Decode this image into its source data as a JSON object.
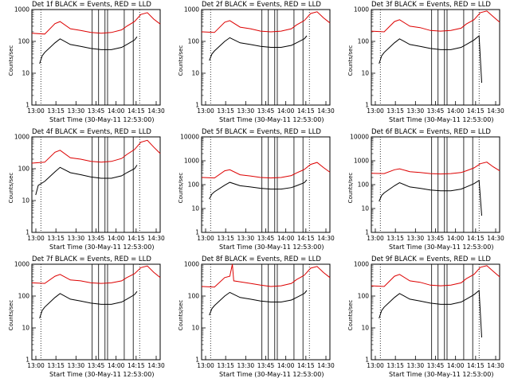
{
  "figure": {
    "background": "#ffffff",
    "colors": {
      "events": "#000000",
      "lld": "#dd0000",
      "marker": "#000000"
    }
  },
  "chart_data": [
    {
      "type": "line",
      "title": "Det 1f BLACK = Events, RED = LLD",
      "xlabel": "Start Time (30-May-11 12:53:00)",
      "ylabel": "Counts/sec",
      "yscale": "log",
      "ylim": [
        1,
        1000
      ],
      "xlim": [
        0,
        100
      ],
      "x_ticks": [
        "13:00",
        "13:15",
        "13:30",
        "13:45",
        "14:00",
        "14:15",
        "14:30"
      ],
      "y_ticks": [
        "1",
        "10",
        "100",
        "1000"
      ],
      "series": [
        {
          "name": "LLD",
          "color": "#dd0000",
          "x": [
            0,
            10,
            18,
            22,
            30,
            38,
            46,
            54,
            62,
            70,
            74,
            80,
            85,
            90,
            95,
            100
          ],
          "values": [
            180,
            170,
            360,
            420,
            250,
            220,
            190,
            180,
            190,
            230,
            300,
            420,
            700,
            800,
            500,
            350
          ]
        },
        {
          "name": "Events",
          "color": "#000000",
          "x": [
            6,
            8,
            10,
            18,
            22,
            30,
            38,
            46,
            54,
            62,
            70,
            74,
            80,
            82
          ],
          "values": [
            20,
            35,
            45,
            90,
            120,
            80,
            70,
            60,
            55,
            55,
            65,
            80,
            110,
            140
          ]
        }
      ],
      "vlines_dotted": [
        7,
        84
      ],
      "vlines_solid": [
        47,
        52,
        57,
        59,
        72,
        79
      ]
    },
    {
      "type": "line",
      "title": "Det 2f BLACK = Events, RED = LLD",
      "xlabel": "Start Time (30-May-11 12:53:00)",
      "ylabel": "Counts/sec",
      "yscale": "log",
      "ylim": [
        1,
        1000
      ],
      "xlim": [
        0,
        100
      ],
      "x_ticks": [
        "13:00",
        "13:15",
        "13:30",
        "13:45",
        "14:00",
        "14:15",
        "14:30"
      ],
      "y_ticks": [
        "1",
        "10",
        "100",
        "1000"
      ],
      "series": [
        {
          "name": "LLD",
          "color": "#dd0000",
          "x": [
            0,
            10,
            18,
            22,
            30,
            38,
            46,
            54,
            62,
            70,
            74,
            80,
            85,
            90,
            95,
            100
          ],
          "values": [
            200,
            190,
            400,
            450,
            280,
            250,
            210,
            200,
            210,
            250,
            330,
            450,
            750,
            850,
            550,
            380
          ]
        },
        {
          "name": "Events",
          "color": "#000000",
          "x": [
            6,
            8,
            10,
            18,
            22,
            30,
            38,
            46,
            54,
            62,
            70,
            74,
            80,
            82
          ],
          "values": [
            25,
            40,
            50,
            100,
            130,
            90,
            80,
            70,
            65,
            65,
            75,
            90,
            120,
            150
          ]
        }
      ],
      "vlines_dotted": [
        7,
        84
      ],
      "vlines_solid": [
        47,
        52,
        57,
        59,
        72,
        79
      ]
    },
    {
      "type": "line",
      "title": "Det 3f BLACK = Events, RED = LLD",
      "xlabel": "Start Time (30-May-11 12:53:00)",
      "ylabel": "Counts/sec",
      "yscale": "log",
      "ylim": [
        1,
        1000
      ],
      "xlim": [
        0,
        100
      ],
      "x_ticks": [
        "13:00",
        "13:15",
        "13:30",
        "13:45",
        "14:00",
        "14:15",
        "14:30"
      ],
      "y_ticks": [
        "1",
        "10",
        "100",
        "1000"
      ],
      "series": [
        {
          "name": "LLD",
          "color": "#dd0000",
          "x": [
            0,
            10,
            18,
            22,
            30,
            38,
            46,
            54,
            62,
            70,
            74,
            80,
            85,
            90,
            95,
            100
          ],
          "values": [
            210,
            200,
            420,
            480,
            300,
            270,
            220,
            210,
            220,
            260,
            350,
            480,
            800,
            900,
            600,
            400
          ]
        },
        {
          "name": "Events",
          "color": "#000000",
          "x": [
            6,
            8,
            10,
            18,
            22,
            30,
            38,
            46,
            54,
            62,
            70,
            74,
            80,
            84,
            86
          ],
          "values": [
            20,
            35,
            45,
            90,
            120,
            80,
            70,
            60,
            55,
            55,
            65,
            80,
            110,
            150,
            5
          ]
        }
      ],
      "vlines_dotted": [
        7,
        84
      ],
      "vlines_solid": [
        47,
        52,
        57,
        59,
        72,
        79
      ]
    },
    {
      "type": "line",
      "title": "Det 4f BLACK = Events, RED = LLD",
      "xlabel": "Start Time (30-May-11 12:53:00)",
      "ylabel": "Counts/sec",
      "yscale": "log",
      "ylim": [
        1,
        1000
      ],
      "xlim": [
        0,
        100
      ],
      "x_ticks": [
        "13:00",
        "13:15",
        "13:30",
        "13:45",
        "14:00",
        "14:15",
        "14:30"
      ],
      "y_ticks": [
        "1",
        "10",
        "100",
        "1000"
      ],
      "series": [
        {
          "name": "LLD",
          "color": "#dd0000",
          "x": [
            0,
            10,
            18,
            22,
            30,
            38,
            46,
            54,
            62,
            70,
            74,
            80,
            85,
            90,
            95,
            100
          ],
          "values": [
            150,
            160,
            330,
            380,
            220,
            200,
            170,
            160,
            170,
            210,
            280,
            400,
            680,
            780,
            480,
            300
          ]
        },
        {
          "name": "Events",
          "color": "#000000",
          "x": [
            3,
            5,
            10,
            18,
            22,
            30,
            38,
            46,
            54,
            62,
            70,
            74,
            80,
            82
          ],
          "values": [
            15,
            30,
            40,
            80,
            110,
            75,
            65,
            55,
            50,
            50,
            60,
            75,
            100,
            130
          ]
        }
      ],
      "vlines_dotted": [
        7,
        84
      ],
      "vlines_solid": [
        47,
        52,
        57,
        59,
        72,
        79
      ]
    },
    {
      "type": "line",
      "title": "Det 5f BLACK = Events, RED = LLD",
      "xlabel": "Start Time (30-May-11 12:53:00)",
      "ylabel": "Counts/sec",
      "yscale": "log",
      "ylim": [
        1,
        10000
      ],
      "xlim": [
        0,
        100
      ],
      "x_ticks": [
        "13:00",
        "13:15",
        "13:30",
        "13:45",
        "14:00",
        "14:15",
        "14:30"
      ],
      "y_ticks": [
        "1",
        "10",
        "100",
        "1000",
        "10000"
      ],
      "series": [
        {
          "name": "LLD",
          "color": "#dd0000",
          "x": [
            0,
            10,
            18,
            22,
            30,
            38,
            46,
            54,
            62,
            70,
            74,
            80,
            85,
            90,
            95,
            100
          ],
          "values": [
            200,
            190,
            380,
            420,
            260,
            230,
            200,
            190,
            200,
            240,
            310,
            430,
            700,
            850,
            520,
            330
          ]
        },
        {
          "name": "Events",
          "color": "#000000",
          "x": [
            6,
            8,
            10,
            18,
            22,
            30,
            38,
            46,
            54,
            62,
            70,
            74,
            80,
            82
          ],
          "values": [
            25,
            40,
            50,
            95,
            125,
            90,
            80,
            70,
            65,
            65,
            75,
            90,
            120,
            160
          ]
        }
      ],
      "vlines_dotted": [
        7,
        84
      ],
      "vlines_solid": [
        47,
        52,
        57,
        59,
        72,
        79
      ]
    },
    {
      "type": "line",
      "title": "Det 6f BLACK = Events, RED = LLD",
      "xlabel": "Start Time (30-May-11 12:53:00)",
      "ylabel": "Counts/sec",
      "yscale": "log",
      "ylim": [
        1,
        10000
      ],
      "xlim": [
        0,
        100
      ],
      "x_ticks": [
        "13:00",
        "13:15",
        "13:30",
        "13:45",
        "14:00",
        "14:15",
        "14:30"
      ],
      "y_ticks": [
        "1",
        "10",
        "100",
        "1000",
        "10000"
      ],
      "series": [
        {
          "name": "LLD",
          "color": "#dd0000",
          "x": [
            0,
            10,
            18,
            22,
            30,
            38,
            46,
            54,
            62,
            70,
            74,
            80,
            85,
            90,
            95,
            100
          ],
          "values": [
            300,
            290,
            420,
            460,
            350,
            320,
            290,
            280,
            290,
            320,
            380,
            500,
            750,
            880,
            560,
            380
          ]
        },
        {
          "name": "Events",
          "color": "#000000",
          "x": [
            6,
            8,
            10,
            18,
            22,
            30,
            38,
            46,
            54,
            62,
            70,
            74,
            80,
            84,
            86
          ],
          "values": [
            20,
            35,
            45,
            90,
            120,
            80,
            70,
            60,
            55,
            55,
            65,
            80,
            110,
            150,
            5
          ]
        }
      ],
      "vlines_dotted": [
        7,
        84
      ],
      "vlines_solid": [
        47,
        52,
        57,
        59,
        72,
        79
      ]
    },
    {
      "type": "line",
      "title": "Det 7f BLACK = Events, RED = LLD",
      "xlabel": "Start Time (30-May-11 12:53:00)",
      "ylabel": "Counts/sec",
      "yscale": "log",
      "ylim": [
        1,
        1000
      ],
      "xlim": [
        0,
        100
      ],
      "x_ticks": [
        "13:00",
        "13:15",
        "13:30",
        "13:45",
        "14:00",
        "14:15",
        "14:30"
      ],
      "y_ticks": [
        "1",
        "10",
        "100",
        "1000"
      ],
      "series": [
        {
          "name": "LLD",
          "color": "#dd0000",
          "x": [
            0,
            10,
            18,
            22,
            30,
            38,
            46,
            54,
            62,
            70,
            74,
            80,
            85,
            90,
            95,
            100
          ],
          "values": [
            260,
            250,
            420,
            480,
            320,
            300,
            260,
            250,
            260,
            300,
            380,
            500,
            780,
            880,
            560,
            380
          ]
        },
        {
          "name": "Events",
          "color": "#000000",
          "x": [
            6,
            8,
            10,
            18,
            22,
            30,
            38,
            46,
            54,
            62,
            70,
            74,
            80,
            82
          ],
          "values": [
            20,
            35,
            45,
            90,
            120,
            80,
            70,
            60,
            55,
            55,
            65,
            80,
            110,
            140
          ]
        }
      ],
      "vlines_dotted": [
        7,
        84
      ],
      "vlines_solid": [
        47,
        52,
        57,
        59,
        72,
        79
      ]
    },
    {
      "type": "line",
      "title": "Det 8f BLACK = Events, RED = LLD",
      "xlabel": "Start Time (30-May-11 12:53:00)",
      "ylabel": "Counts/sec",
      "yscale": "log",
      "ylim": [
        1,
        1000
      ],
      "xlim": [
        0,
        100
      ],
      "x_ticks": [
        "13:00",
        "13:15",
        "13:30",
        "13:45",
        "14:00",
        "14:15",
        "14:30"
      ],
      "y_ticks": [
        "1",
        "10",
        "100",
        "1000"
      ],
      "series": [
        {
          "name": "LLD",
          "color": "#dd0000",
          "x": [
            0,
            10,
            18,
            22,
            24,
            25,
            30,
            38,
            46,
            54,
            62,
            70,
            74,
            80,
            85,
            90,
            95,
            100
          ],
          "values": [
            200,
            190,
            380,
            420,
            1000,
            300,
            280,
            250,
            220,
            200,
            210,
            250,
            330,
            450,
            750,
            850,
            550,
            380
          ]
        },
        {
          "name": "Events",
          "color": "#000000",
          "x": [
            6,
            8,
            10,
            18,
            22,
            30,
            38,
            46,
            54,
            62,
            70,
            74,
            80,
            82
          ],
          "values": [
            25,
            40,
            50,
            100,
            130,
            90,
            80,
            70,
            65,
            65,
            75,
            90,
            120,
            150
          ]
        }
      ],
      "vlines_dotted": [
        7,
        84
      ],
      "vlines_solid": [
        47,
        52,
        57,
        59,
        72,
        79
      ]
    },
    {
      "type": "line",
      "title": "Det 9f BLACK = Events, RED = LLD",
      "xlabel": "Start Time (30-May-11 12:53:00)",
      "ylabel": "Counts/sec",
      "yscale": "log",
      "ylim": [
        1,
        1000
      ],
      "xlim": [
        0,
        100
      ],
      "x_ticks": [
        "13:00",
        "13:15",
        "13:30",
        "13:45",
        "14:00",
        "14:15",
        "14:30"
      ],
      "y_ticks": [
        "1",
        "10",
        "100",
        "1000"
      ],
      "series": [
        {
          "name": "LLD",
          "color": "#dd0000",
          "x": [
            0,
            10,
            18,
            22,
            30,
            38,
            46,
            54,
            62,
            70,
            74,
            80,
            85,
            90,
            95,
            100
          ],
          "values": [
            210,
            200,
            420,
            480,
            300,
            270,
            220,
            210,
            220,
            260,
            350,
            480,
            800,
            900,
            600,
            400
          ]
        },
        {
          "name": "Events",
          "color": "#000000",
          "x": [
            6,
            8,
            10,
            18,
            22,
            30,
            38,
            46,
            54,
            62,
            70,
            74,
            80,
            84,
            86
          ],
          "values": [
            20,
            35,
            45,
            90,
            120,
            80,
            70,
            60,
            55,
            55,
            65,
            80,
            110,
            150,
            5
          ]
        }
      ],
      "vlines_dotted": [
        7,
        84
      ],
      "vlines_solid": [
        47,
        52,
        57,
        59,
        72,
        79
      ]
    }
  ]
}
